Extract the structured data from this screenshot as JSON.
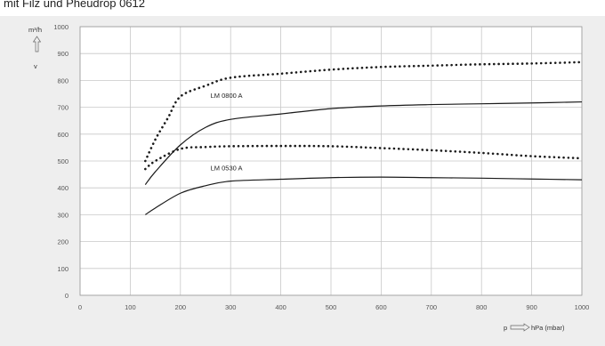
{
  "header": {
    "caption": "mit Filz und Pheudrop 0612"
  },
  "chart_data": {
    "type": "line",
    "title": "",
    "xlabel_prefix": "p",
    "xlabel": "hPa (mbar)",
    "ylabel": "m³/h",
    "y_arrow_note": "v",
    "xlim": [
      0,
      1000
    ],
    "ylim": [
      0,
      1000
    ],
    "xticks": [
      0,
      100,
      200,
      300,
      400,
      500,
      600,
      700,
      800,
      900,
      1000
    ],
    "yticks": [
      0,
      100,
      200,
      300,
      400,
      500,
      600,
      700,
      800,
      900,
      1000
    ],
    "grid": "vertical-and-horizontal",
    "series": [
      {
        "name": "LM 0800 A",
        "style": "solid",
        "x": [
          130,
          150,
          200,
          250,
          300,
          400,
          500,
          600,
          700,
          800,
          900,
          1000
        ],
        "y": [
          412,
          460,
          560,
          625,
          655,
          675,
          695,
          705,
          710,
          713,
          716,
          720
        ]
      },
      {
        "name": "",
        "style": "dotted",
        "x": [
          130,
          150,
          175,
          200,
          250,
          300,
          400,
          500,
          600,
          700,
          800,
          900,
          1000
        ],
        "y": [
          500,
          580,
          660,
          740,
          780,
          810,
          825,
          840,
          850,
          855,
          860,
          863,
          868
        ]
      },
      {
        "name": "LM 0530 A",
        "style": "solid",
        "x": [
          130,
          150,
          200,
          250,
          300,
          400,
          500,
          600,
          700,
          800,
          900,
          1000
        ],
        "y": [
          300,
          325,
          380,
          408,
          425,
          432,
          438,
          440,
          438,
          436,
          433,
          430
        ]
      },
      {
        "name": "",
        "style": "dotted",
        "x": [
          130,
          150,
          200,
          250,
          300,
          400,
          500,
          600,
          700,
          800,
          900,
          1000
        ],
        "y": [
          470,
          500,
          545,
          552,
          555,
          556,
          555,
          548,
          540,
          530,
          518,
          510
        ]
      }
    ],
    "annotations": [
      {
        "text": "LM 0800 A",
        "x": 260,
        "y": 735
      },
      {
        "text": "LM 0530 A",
        "x": 260,
        "y": 465
      }
    ],
    "colors": {
      "panel": "#eeeeee",
      "plot": "#ffffff",
      "grid": "#c8c8c8",
      "line": "#1a1a1a"
    }
  }
}
